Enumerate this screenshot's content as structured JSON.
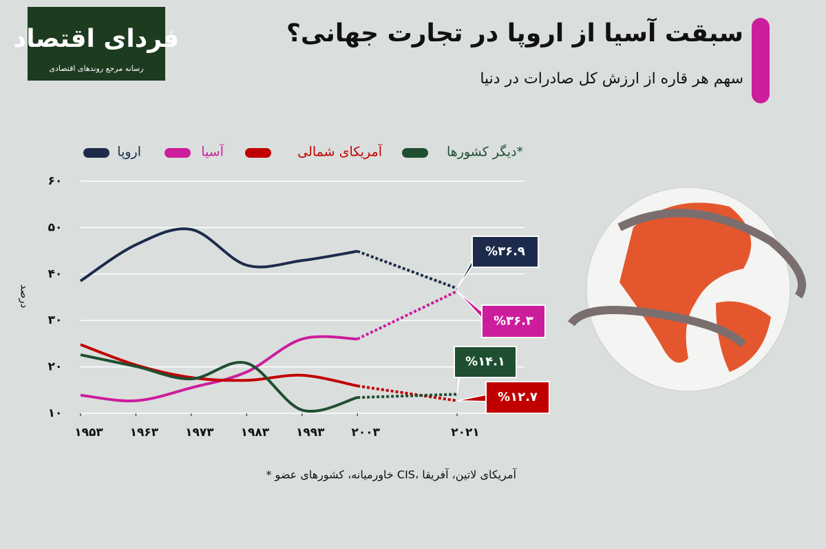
{
  "logo": {
    "name": "فردای اقتصاد",
    "tagline": "رسانه مرجع روندهای اقتصادی"
  },
  "chart_data": {
    "type": "line",
    "title": "سبقت آسیا از اروپا در تجارت جهانی؟",
    "subtitle": "سهم هر قاره از ارزش کل صادرات در دنیا",
    "y_label": "درصد",
    "footnote": "* خاورمیانه، کشورهای عضو CIS، آمریکای لاتین، آفریقا",
    "x": [
      1953,
      1963,
      1973,
      1983,
      1993,
      2003,
      2021
    ],
    "xlim": [
      1953,
      2021
    ],
    "xticks": [
      {
        "value": 1953,
        "label": "۱۹۵۳"
      },
      {
        "value": 1963,
        "label": "۱۹۶۳"
      },
      {
        "value": 1973,
        "label": "۱۹۷۳"
      },
      {
        "value": 1983,
        "label": "۱۹۸۳"
      },
      {
        "value": 1993,
        "label": "۱۹۹۳"
      },
      {
        "value": 2003,
        "label": "۲۰۰۳"
      },
      {
        "value": 2021,
        "label": "۲۰۲۱"
      }
    ],
    "ylim": [
      10,
      60
    ],
    "yticks": [
      {
        "value": 10,
        "label": "۱۰"
      },
      {
        "value": 20,
        "label": "۲۰"
      },
      {
        "value": 30,
        "label": "۳۰"
      },
      {
        "value": 40,
        "label": "۴۰"
      },
      {
        "value": 50,
        "label": "۵۰"
      },
      {
        "value": 60,
        "label": "۶۰"
      }
    ],
    "grid": true,
    "series": [
      {
        "name": "اروپا",
        "color": "#1c2b4b",
        "values": [
          38.5,
          46.3,
          49.6,
          41.9,
          42.9,
          44.9,
          36.9
        ],
        "value_labels": [
          null,
          null,
          null,
          null,
          null,
          null,
          "%۳۶.۹"
        ]
      },
      {
        "name": "آسیا",
        "color": "#cc1d9c",
        "values": [
          13.9,
          12.7,
          15.5,
          18.9,
          26.0,
          26.0,
          36.3
        ],
        "value_labels": [
          null,
          null,
          null,
          null,
          null,
          null,
          "%۳۶.۳"
        ]
      },
      {
        "name": "آمریکای شمالی",
        "color": "#c00000",
        "values": [
          24.8,
          20.4,
          17.7,
          17.1,
          18.2,
          15.9,
          12.7
        ],
        "value_labels": [
          null,
          null,
          null,
          null,
          null,
          null,
          "%۱۲.۷"
        ]
      },
      {
        "name": "دیگر کشورها*",
        "color": "#1f4e31",
        "values": [
          22.6,
          20.1,
          17.4,
          20.8,
          10.7,
          13.4,
          14.1
        ],
        "value_labels": [
          null,
          null,
          null,
          null,
          null,
          null,
          "%۱۴.۱"
        ]
      }
    ]
  }
}
